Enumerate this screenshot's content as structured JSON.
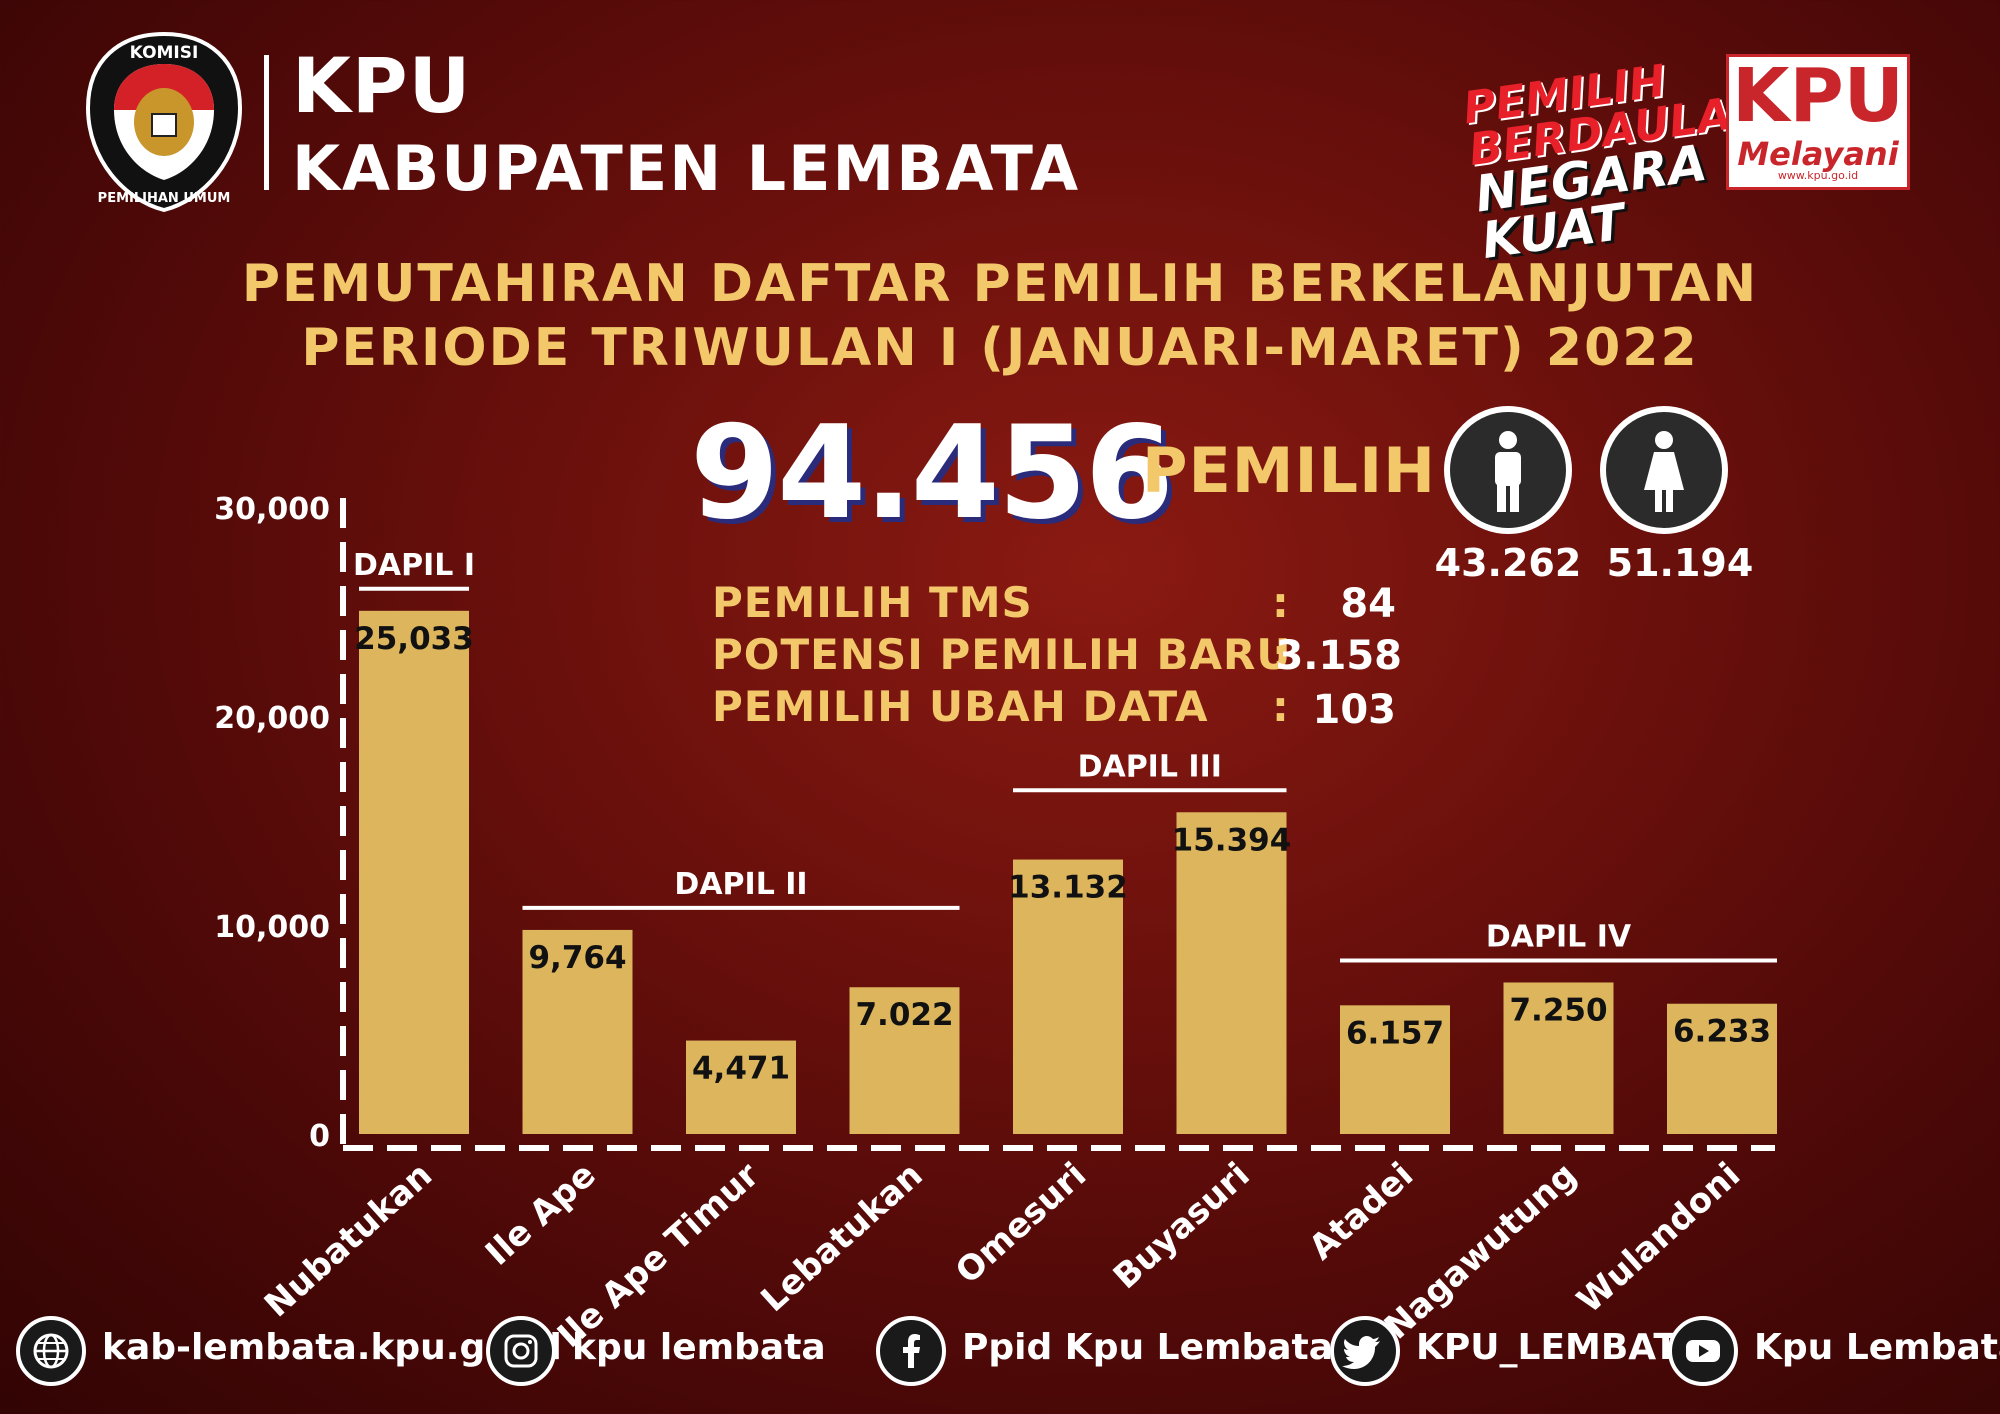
{
  "header": {
    "logo_top_text": "KOMISI",
    "logo_bottom_text": "PEMILIHAN UMUM",
    "org_line1": "KPU",
    "org_line2": "KABUPATEN LEMBATA",
    "tagline": [
      "PEMILIH",
      "BERDAULAT",
      "NEGARA",
      "KUAT"
    ],
    "badge_title": "KPU",
    "badge_subtitle": "Melayani",
    "badge_url": "www.kpu.go.id"
  },
  "title": {
    "line1": "PEMUTAHIRAN DAFTAR PEMILIH BERKELANJUTAN",
    "line2": "PERIODE TRIWULAN I (JANUARI-MARET) 2022"
  },
  "summary": {
    "total_value": "94.456",
    "total_label": "PEMILIH",
    "male_count": "43.262",
    "female_count": "51.194",
    "male_icon": "male-person-icon",
    "female_icon": "female-person-icon",
    "stats": [
      {
        "label": "PEMILIH TMS",
        "colon": ":",
        "value": "84"
      },
      {
        "label": "POTENSI PEMILIH BARU",
        "colon": ":",
        "value": "3.158"
      },
      {
        "label": "PEMILIH UBAH DATA",
        "colon": ":",
        "value": "103"
      }
    ]
  },
  "chart_data": {
    "type": "bar",
    "categories": [
      "Nubatukan",
      "Ile Ape",
      "Ile Ape Timur",
      "Lebatukan",
      "Omesuri",
      "Buyasuri",
      "Atadei",
      "Nagawutung",
      "Wulandoni"
    ],
    "values": [
      25033,
      9764,
      4471,
      7022,
      13132,
      15394,
      6157,
      7250,
      6233
    ],
    "value_labels": [
      "25,033",
      "9,764",
      "4,471",
      "7.022",
      "13.132",
      "15.394",
      "6.157",
      "7.250",
      "6.233"
    ],
    "ylim": [
      0,
      30000
    ],
    "yticks": [
      0,
      10000,
      20000,
      30000
    ],
    "ytick_labels": [
      "0",
      "10,000",
      "20,000",
      "30,000"
    ],
    "groups": [
      {
        "label": "DAPIL I",
        "from": 0,
        "to": 0
      },
      {
        "label": "DAPIL II",
        "from": 1,
        "to": 3
      },
      {
        "label": "DAPIL III",
        "from": 4,
        "to": 5
      },
      {
        "label": "DAPIL IV",
        "from": 6,
        "to": 8
      }
    ],
    "bar_color": "#dcb55c",
    "grid": false
  },
  "footer": {
    "social": [
      {
        "icon": "globe-icon",
        "text": "kab-lembata.kpu.go.id"
      },
      {
        "icon": "instagram-icon",
        "text": "kpu lembata"
      },
      {
        "icon": "facebook-icon",
        "text": "Ppid Kpu Lembata"
      },
      {
        "icon": "twitter-icon",
        "text": "KPU_LEMBATA"
      },
      {
        "icon": "youtube-icon",
        "text": "Kpu Lembata"
      }
    ]
  },
  "colors": {
    "accent": "#f2c86a",
    "background": "#6b100c",
    "bar": "#dcb55c"
  }
}
